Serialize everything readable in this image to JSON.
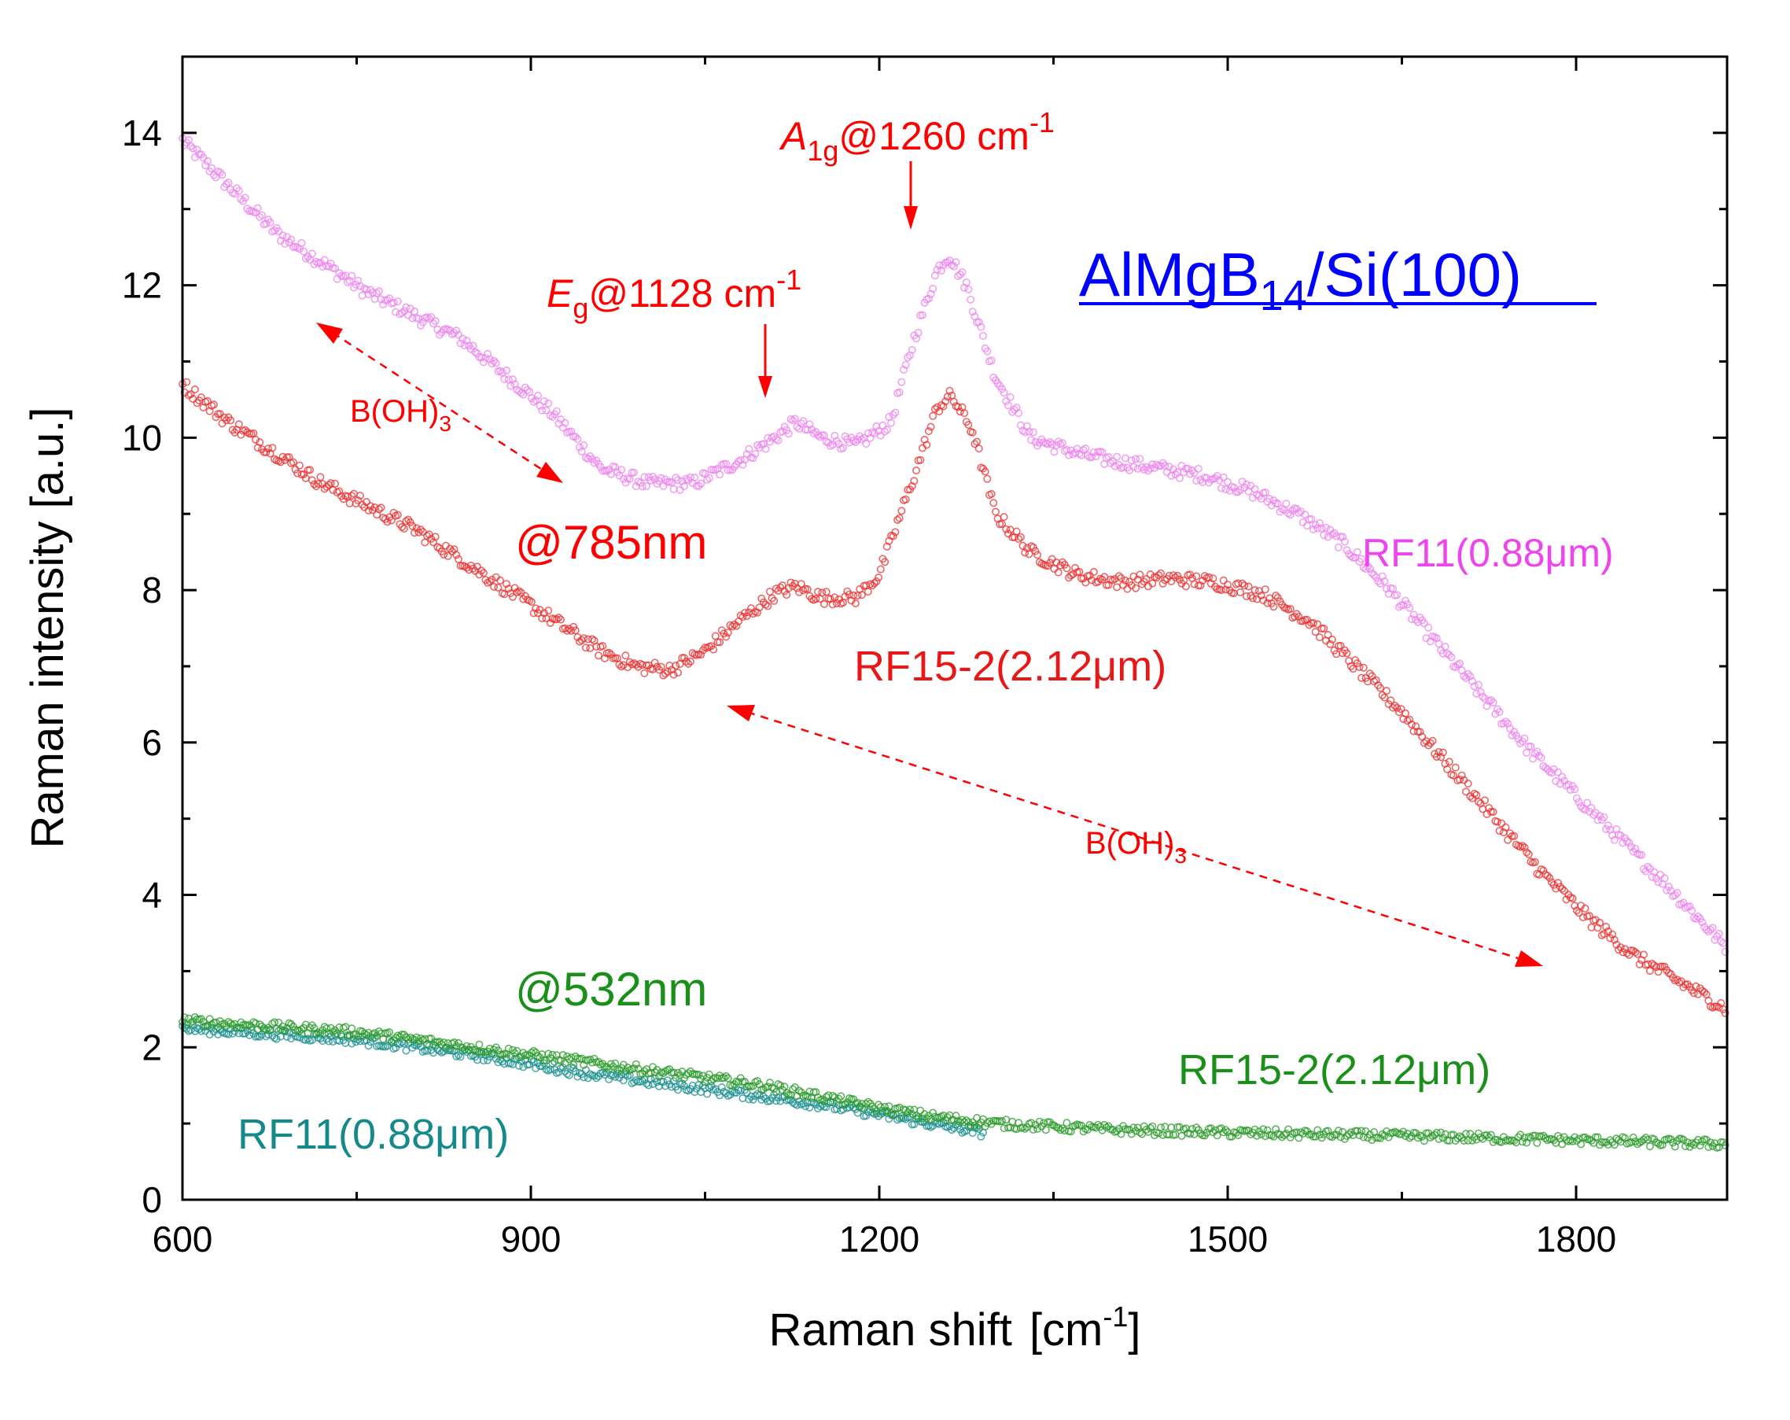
{
  "chart_data": {
    "type": "scatter",
    "xlabel": "Raman shift",
    "xlabel_unit": "[cm",
    "xlabel_unit_sup": "-1",
    "xlabel_unit_close": "]",
    "ylabel": "Raman intensity [a.u.]",
    "xlim": [
      600,
      1930
    ],
    "ylim": [
      0,
      15
    ],
    "x_ticks": [
      600,
      900,
      1200,
      1500,
      1800
    ],
    "y_ticks": [
      0,
      2,
      4,
      6,
      8,
      10,
      12,
      14
    ],
    "x_minor_ticks": [
      750,
      1050,
      1350,
      1650
    ],
    "y_minor_ticks": [
      1,
      3,
      5,
      7,
      9,
      11,
      13
    ],
    "series": [
      {
        "name": "RF11(0.88μm) @785nm",
        "color": "#ee82ee",
        "x_range": [
          600,
          1930
        ],
        "points": [
          [
            600,
            13.9
          ],
          [
            640,
            13.3
          ],
          [
            680,
            12.7
          ],
          [
            720,
            12.3
          ],
          [
            760,
            11.9
          ],
          [
            800,
            11.6
          ],
          [
            840,
            11.3
          ],
          [
            880,
            10.8
          ],
          [
            920,
            10.3
          ],
          [
            960,
            9.6
          ],
          [
            1000,
            9.4
          ],
          [
            1040,
            9.4
          ],
          [
            1080,
            9.7
          ],
          [
            1110,
            10.0
          ],
          [
            1128,
            10.2
          ],
          [
            1150,
            10.0
          ],
          [
            1180,
            9.9
          ],
          [
            1210,
            10.2
          ],
          [
            1230,
            11.3
          ],
          [
            1250,
            12.2
          ],
          [
            1260,
            12.4
          ],
          [
            1275,
            12.0
          ],
          [
            1300,
            10.8
          ],
          [
            1330,
            10.0
          ],
          [
            1370,
            9.8
          ],
          [
            1400,
            9.7
          ],
          [
            1440,
            9.6
          ],
          [
            1480,
            9.5
          ],
          [
            1520,
            9.3
          ],
          [
            1560,
            9.0
          ],
          [
            1600,
            8.6
          ],
          [
            1640,
            8.0
          ],
          [
            1680,
            7.3
          ],
          [
            1720,
            6.6
          ],
          [
            1760,
            5.9
          ],
          [
            1800,
            5.3
          ],
          [
            1840,
            4.7
          ],
          [
            1880,
            4.1
          ],
          [
            1930,
            3.3
          ]
        ]
      },
      {
        "name": "RF15-2(2.12μm) @785nm",
        "color": "#e83030",
        "x_range": [
          600,
          1930
        ],
        "points": [
          [
            600,
            10.7
          ],
          [
            640,
            10.2
          ],
          [
            680,
            9.8
          ],
          [
            720,
            9.4
          ],
          [
            760,
            9.1
          ],
          [
            800,
            8.8
          ],
          [
            840,
            8.4
          ],
          [
            880,
            8.0
          ],
          [
            920,
            7.6
          ],
          [
            960,
            7.2
          ],
          [
            990,
            7.0
          ],
          [
            1020,
            6.95
          ],
          [
            1050,
            7.2
          ],
          [
            1080,
            7.6
          ],
          [
            1110,
            7.95
          ],
          [
            1128,
            8.05
          ],
          [
            1150,
            7.9
          ],
          [
            1180,
            7.9
          ],
          [
            1200,
            8.2
          ],
          [
            1230,
            9.5
          ],
          [
            1250,
            10.4
          ],
          [
            1262,
            10.55
          ],
          [
            1280,
            10.1
          ],
          [
            1300,
            9.0
          ],
          [
            1330,
            8.5
          ],
          [
            1370,
            8.2
          ],
          [
            1410,
            8.1
          ],
          [
            1450,
            8.15
          ],
          [
            1490,
            8.1
          ],
          [
            1530,
            7.95
          ],
          [
            1570,
            7.6
          ],
          [
            1610,
            7.0
          ],
          [
            1650,
            6.4
          ],
          [
            1690,
            5.7
          ],
          [
            1730,
            5.0
          ],
          [
            1770,
            4.3
          ],
          [
            1810,
            3.7
          ],
          [
            1850,
            3.2
          ],
          [
            1890,
            2.85
          ],
          [
            1930,
            2.5
          ]
        ]
      },
      {
        "name": "RF11(0.88μm) @532nm",
        "color": "#1a8f8f",
        "x_range": [
          600,
          1290
        ],
        "points": [
          [
            600,
            2.25
          ],
          [
            650,
            2.2
          ],
          [
            700,
            2.15
          ],
          [
            750,
            2.1
          ],
          [
            800,
            2.0
          ],
          [
            850,
            1.9
          ],
          [
            900,
            1.78
          ],
          [
            950,
            1.65
          ],
          [
            1000,
            1.55
          ],
          [
            1050,
            1.45
          ],
          [
            1100,
            1.35
          ],
          [
            1150,
            1.25
          ],
          [
            1200,
            1.12
          ],
          [
            1250,
            0.98
          ],
          [
            1290,
            0.88
          ]
        ]
      },
      {
        "name": "RF15-2(2.12μm) @532nm",
        "color": "#2a9a2a",
        "x_range": [
          600,
          1930
        ],
        "points": [
          [
            600,
            2.35
          ],
          [
            650,
            2.3
          ],
          [
            700,
            2.25
          ],
          [
            750,
            2.2
          ],
          [
            800,
            2.1
          ],
          [
            850,
            2.0
          ],
          [
            900,
            1.9
          ],
          [
            950,
            1.8
          ],
          [
            1000,
            1.7
          ],
          [
            1050,
            1.6
          ],
          [
            1100,
            1.5
          ],
          [
            1150,
            1.35
          ],
          [
            1200,
            1.2
          ],
          [
            1250,
            1.08
          ],
          [
            1300,
            1.0
          ],
          [
            1400,
            0.92
          ],
          [
            1500,
            0.88
          ],
          [
            1600,
            0.85
          ],
          [
            1700,
            0.82
          ],
          [
            1800,
            0.78
          ],
          [
            1930,
            0.73
          ]
        ]
      }
    ]
  },
  "annotations": {
    "title_main": "AlMgB",
    "title_sub": "14",
    "title_rest": "/Si(100)",
    "eg_italic": "E",
    "eg_sub": "g",
    "eg_rest": "@1128 cm",
    "eg_sup": "-1",
    "a1g_italic": "A",
    "a1g_sub": "1g",
    "a1g_rest": "@1260 cm",
    "a1g_sup": "-1",
    "boh3_main": "B(OH)",
    "boh3_sub": "3",
    "laser_785": "@785nm",
    "laser_532": "@532nm",
    "label_rf11_785": "RF11(0.88μm)",
    "label_rf15_785": "RF15-2(2.12μm)",
    "label_rf11_532": "RF11(0.88μm)",
    "label_rf15_532": "RF15-2(2.12μm)"
  },
  "colors": {
    "annotation_red": "#ff0000",
    "title_blue": "#0000ff",
    "green": "#1a8f1a",
    "teal": "#168a8a",
    "magenta": "#ee44ee"
  }
}
